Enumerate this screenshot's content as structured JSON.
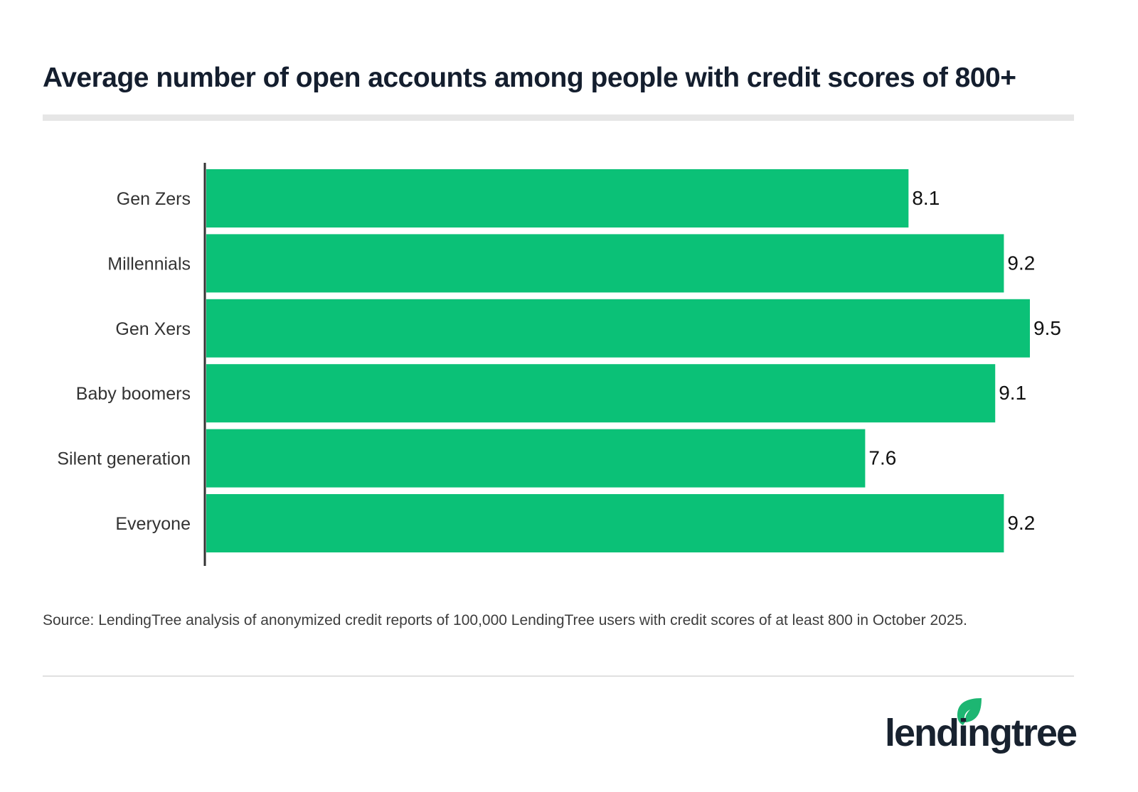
{
  "chart_data": {
    "type": "bar",
    "orientation": "horizontal",
    "title": "Average number of open accounts among people with credit scores of 800+",
    "categories": [
      "Gen Zers",
      "Millennials",
      "Gen Xers",
      "Baby boomers",
      "Silent generation",
      "Everyone"
    ],
    "values": [
      8.1,
      9.2,
      9.5,
      9.1,
      7.6,
      9.2
    ],
    "data_labels": [
      "8.1",
      "9.2",
      "9.5",
      "9.1",
      "7.6",
      "9.2"
    ],
    "xlabel": "",
    "ylabel": "",
    "xlim": [
      0,
      9.5
    ],
    "grid": false,
    "bar_color": "#0bc177"
  },
  "source": "Source: LendingTree analysis of anonymized credit reports of 100,000 LendingTree users with credit scores of at least 800 in October 2025.",
  "logo": {
    "text": "lendingtree",
    "leaf_color": "#1db672"
  }
}
